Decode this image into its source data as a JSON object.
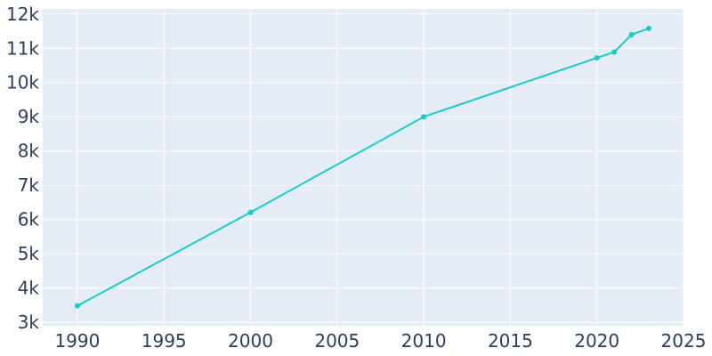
{
  "chart_data": {
    "type": "line",
    "title": "",
    "xlabel": "",
    "ylabel": "",
    "xlim": [
      1988,
      2025
    ],
    "ylim": [
      2900,
      12150
    ],
    "x_ticks": [
      1990,
      1995,
      2000,
      2005,
      2010,
      2015,
      2020,
      2025
    ],
    "x_tick_labels": [
      "1990",
      "1995",
      "2000",
      "2005",
      "2010",
      "2015",
      "2020",
      "2025"
    ],
    "y_ticks": [
      3000,
      4000,
      5000,
      6000,
      7000,
      8000,
      9000,
      10000,
      11000,
      12000
    ],
    "y_tick_labels": [
      "3k",
      "4k",
      "5k",
      "6k",
      "7k",
      "8k",
      "9k",
      "10k",
      "11k",
      "12k"
    ],
    "grid": true,
    "legend": "none",
    "series": [
      {
        "color": "#17cccc",
        "x": [
          1990,
          2000,
          2010,
          2020,
          2021,
          2022,
          2023
        ],
        "y": [
          3480,
          6210,
          9000,
          10720,
          10890,
          11400,
          11580
        ]
      }
    ]
  },
  "colors": {
    "plot_background": "#e5ecf6",
    "grid": "#ffffff",
    "tick_text": "#2a3f5f"
  }
}
